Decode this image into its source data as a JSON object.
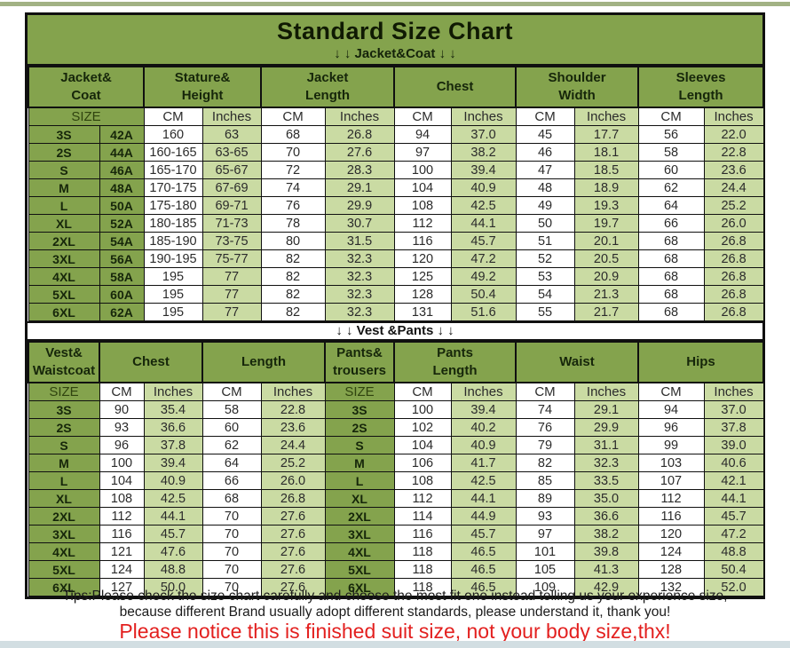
{
  "page": {
    "title": "Standard Size Chart",
    "jacket_section_label": "↓ ↓  Jacket&Coat ↓ ↓",
    "vest_section_label": "↓ ↓  Vest &Pants ↓ ↓",
    "tips_line1": "Tips:Please check the size chart carefully and choose the most fit one instead telling us your experience size,",
    "tips_line2": "because different Brand usually adopt different standards, please understand it, thank you!",
    "notice": "Please notice this is finished suit size, not your body size,thx!"
  },
  "colors": {
    "header_green": "#84a34d",
    "cell_green": "#cadba3",
    "size_text": "#16260a",
    "border": "#101010",
    "notice_red": "#e3201f",
    "top_strip": "#a2b284",
    "bottom_strip": "#d2dee2"
  },
  "jacket_table": {
    "groups": [
      {
        "lines": [
          "Jacket&",
          "Coat"
        ],
        "span": 2
      },
      {
        "lines": [
          "Stature&",
          "Height"
        ],
        "span": 2
      },
      {
        "lines": [
          "Jacket",
          "Length"
        ],
        "span": 2
      },
      {
        "lines": [
          "Chest"
        ],
        "span": 2
      },
      {
        "lines": [
          "Shoulder",
          "Width"
        ],
        "span": 2
      },
      {
        "lines": [
          "Sleeves",
          "Length"
        ],
        "span": 2
      }
    ],
    "subheader": [
      {
        "label": "SIZE",
        "span": 2,
        "type": "sizehead"
      },
      {
        "label": "CM",
        "type": "cm"
      },
      {
        "label": "Inches",
        "type": "in"
      },
      {
        "label": "CM",
        "type": "cm"
      },
      {
        "label": "Inches",
        "type": "in"
      },
      {
        "label": "CM",
        "type": "cm"
      },
      {
        "label": "Inches",
        "type": "in"
      },
      {
        "label": "CM",
        "type": "cm"
      },
      {
        "label": "Inches",
        "type": "in"
      },
      {
        "label": "CM",
        "type": "cm"
      },
      {
        "label": "Inches",
        "type": "in"
      }
    ],
    "col_types": [
      "size",
      "size",
      "cm",
      "in",
      "cm",
      "in",
      "cm",
      "in",
      "cm",
      "in",
      "cm",
      "in"
    ],
    "rows": [
      [
        "3S",
        "42A",
        "160",
        "63",
        "68",
        "26.8",
        "94",
        "37.0",
        "45",
        "17.7",
        "56",
        "22.0"
      ],
      [
        "2S",
        "44A",
        "160-165",
        "63-65",
        "70",
        "27.6",
        "97",
        "38.2",
        "46",
        "18.1",
        "58",
        "22.8"
      ],
      [
        "S",
        "46A",
        "165-170",
        "65-67",
        "72",
        "28.3",
        "100",
        "39.4",
        "47",
        "18.5",
        "60",
        "23.6"
      ],
      [
        "M",
        "48A",
        "170-175",
        "67-69",
        "74",
        "29.1",
        "104",
        "40.9",
        "48",
        "18.9",
        "62",
        "24.4"
      ],
      [
        "L",
        "50A",
        "175-180",
        "69-71",
        "76",
        "29.9",
        "108",
        "42.5",
        "49",
        "19.3",
        "64",
        "25.2"
      ],
      [
        "XL",
        "52A",
        "180-185",
        "71-73",
        "78",
        "30.7",
        "112",
        "44.1",
        "50",
        "19.7",
        "66",
        "26.0"
      ],
      [
        "2XL",
        "54A",
        "185-190",
        "73-75",
        "80",
        "31.5",
        "116",
        "45.7",
        "51",
        "20.1",
        "68",
        "26.8"
      ],
      [
        "3XL",
        "56A",
        "190-195",
        "75-77",
        "82",
        "32.3",
        "120",
        "47.2",
        "52",
        "20.5",
        "68",
        "26.8"
      ],
      [
        "4XL",
        "58A",
        "195",
        "77",
        "82",
        "32.3",
        "125",
        "49.2",
        "53",
        "20.9",
        "68",
        "26.8"
      ],
      [
        "5XL",
        "60A",
        "195",
        "77",
        "82",
        "32.3",
        "128",
        "50.4",
        "54",
        "21.3",
        "68",
        "26.8"
      ],
      [
        "6XL",
        "62A",
        "195",
        "77",
        "82",
        "32.3",
        "131",
        "51.6",
        "55",
        "21.7",
        "68",
        "26.8"
      ]
    ]
  },
  "vest_table": {
    "groups": [
      {
        "lines": [
          "Vest&",
          "Waistcoat"
        ],
        "span": 1
      },
      {
        "lines": [
          "Chest"
        ],
        "span": 2
      },
      {
        "lines": [
          "Length"
        ],
        "span": 2
      },
      {
        "lines": [
          "Pants&",
          "trousers"
        ],
        "span": 1
      },
      {
        "lines": [
          "Pants",
          "Length"
        ],
        "span": 2
      },
      {
        "lines": [
          "Waist"
        ],
        "span": 2
      },
      {
        "lines": [
          "Hips"
        ],
        "span": 2
      }
    ],
    "subheader": [
      {
        "label": "SIZE",
        "type": "sizehead"
      },
      {
        "label": "CM",
        "type": "cm"
      },
      {
        "label": "Inches",
        "type": "in"
      },
      {
        "label": "CM",
        "type": "cm"
      },
      {
        "label": "Inches",
        "type": "in"
      },
      {
        "label": "SIZE",
        "type": "sizehead"
      },
      {
        "label": "CM",
        "type": "cm"
      },
      {
        "label": "Inches",
        "type": "in"
      },
      {
        "label": "CM",
        "type": "cm"
      },
      {
        "label": "Inches",
        "type": "in"
      },
      {
        "label": "CM",
        "type": "cm"
      },
      {
        "label": "Inches",
        "type": "in"
      }
    ],
    "col_types": [
      "size",
      "cm",
      "in",
      "cm",
      "in",
      "size",
      "cm",
      "in",
      "cm",
      "in",
      "cm",
      "in"
    ],
    "rows": [
      [
        "3S",
        "90",
        "35.4",
        "58",
        "22.8",
        "3S",
        "100",
        "39.4",
        "74",
        "29.1",
        "94",
        "37.0"
      ],
      [
        "2S",
        "93",
        "36.6",
        "60",
        "23.6",
        "2S",
        "102",
        "40.2",
        "76",
        "29.9",
        "96",
        "37.8"
      ],
      [
        "S",
        "96",
        "37.8",
        "62",
        "24.4",
        "S",
        "104",
        "40.9",
        "79",
        "31.1",
        "99",
        "39.0"
      ],
      [
        "M",
        "100",
        "39.4",
        "64",
        "25.2",
        "M",
        "106",
        "41.7",
        "82",
        "32.3",
        "103",
        "40.6"
      ],
      [
        "L",
        "104",
        "40.9",
        "66",
        "26.0",
        "L",
        "108",
        "42.5",
        "85",
        "33.5",
        "107",
        "42.1"
      ],
      [
        "XL",
        "108",
        "42.5",
        "68",
        "26.8",
        "XL",
        "112",
        "44.1",
        "89",
        "35.0",
        "112",
        "44.1"
      ],
      [
        "2XL",
        "112",
        "44.1",
        "70",
        "27.6",
        "2XL",
        "114",
        "44.9",
        "93",
        "36.6",
        "116",
        "45.7"
      ],
      [
        "3XL",
        "116",
        "45.7",
        "70",
        "27.6",
        "3XL",
        "116",
        "45.7",
        "97",
        "38.2",
        "120",
        "47.2"
      ],
      [
        "4XL",
        "121",
        "47.6",
        "70",
        "27.6",
        "4XL",
        "118",
        "46.5",
        "101",
        "39.8",
        "124",
        "48.8"
      ],
      [
        "5XL",
        "124",
        "48.8",
        "70",
        "27.6",
        "5XL",
        "118",
        "46.5",
        "105",
        "41.3",
        "128",
        "50.4"
      ],
      [
        "6XL",
        "127",
        "50.0",
        "70",
        "27.6",
        "6XL",
        "118",
        "46.5",
        "109",
        "42.9",
        "132",
        "52.0"
      ]
    ]
  }
}
